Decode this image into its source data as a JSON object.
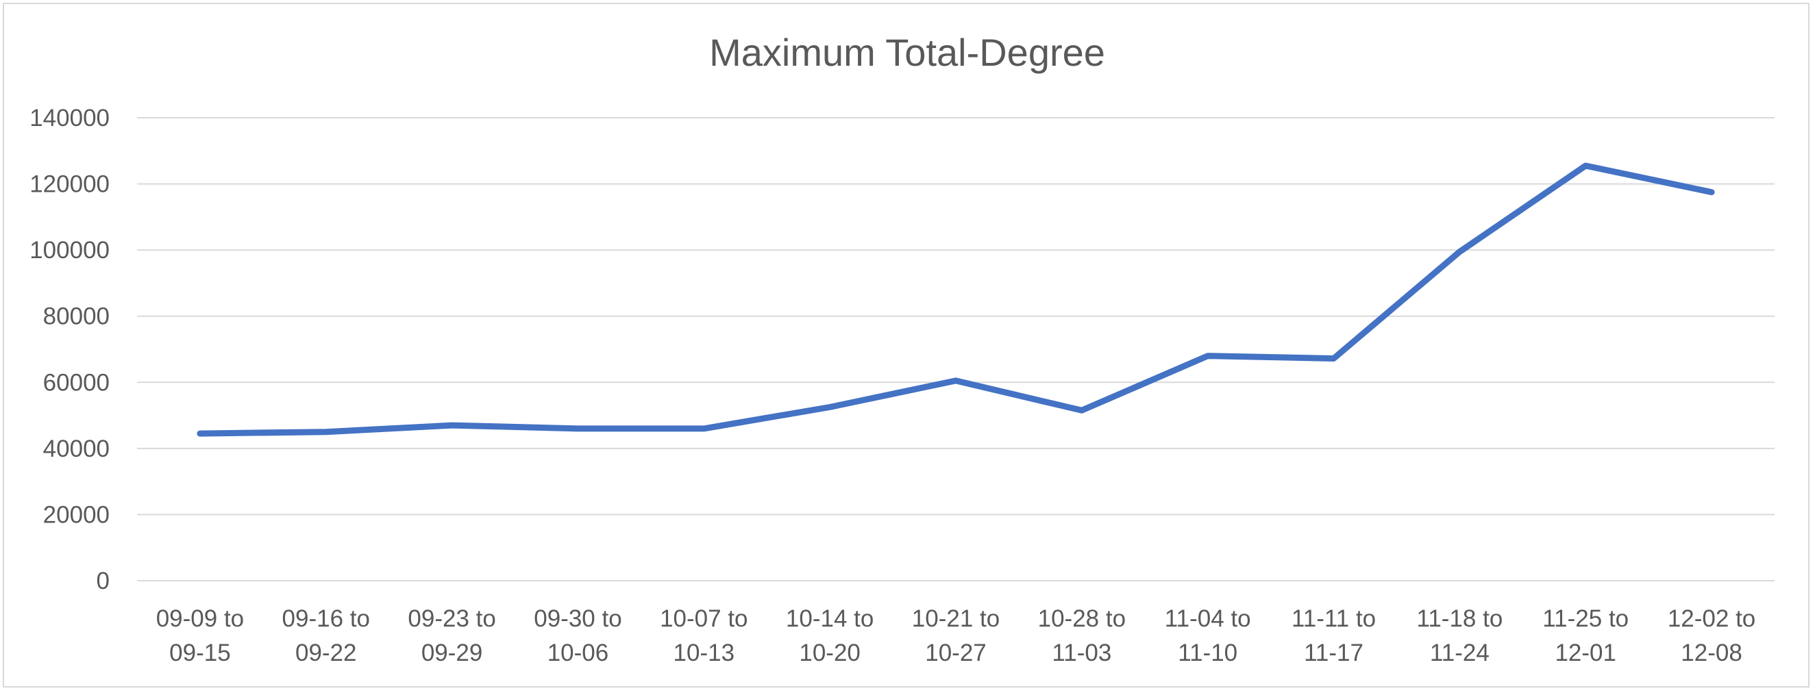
{
  "chart_data": {
    "type": "line",
    "title": "Maximum Total-Degree",
    "xlabel": "",
    "ylabel": "",
    "categories": [
      [
        "09-09 to",
        "09-15"
      ],
      [
        "09-16 to",
        "09-22"
      ],
      [
        "09-23 to",
        "09-29"
      ],
      [
        "09-30 to",
        "10-06"
      ],
      [
        "10-07 to",
        "10-13"
      ],
      [
        "10-14 to",
        "10-20"
      ],
      [
        "10-21 to",
        "10-27"
      ],
      [
        "10-28 to",
        "11-03"
      ],
      [
        "11-04 to",
        "11-10"
      ],
      [
        "11-11 to",
        "11-17"
      ],
      [
        "11-18 to",
        "11-24"
      ],
      [
        "11-25 to",
        "12-01"
      ],
      [
        "12-02 to",
        "12-08"
      ]
    ],
    "series": [
      {
        "color": "#4472c4",
        "values": [
          44500,
          45000,
          47000,
          46000,
          46000,
          52500,
          60500,
          51500,
          68000,
          67200,
          99500,
          125500,
          117500
        ]
      }
    ],
    "ylim": [
      0,
      140000
    ],
    "yticks": [
      0,
      20000,
      40000,
      60000,
      80000,
      100000,
      120000,
      140000
    ],
    "grid": true,
    "legend": "none"
  }
}
